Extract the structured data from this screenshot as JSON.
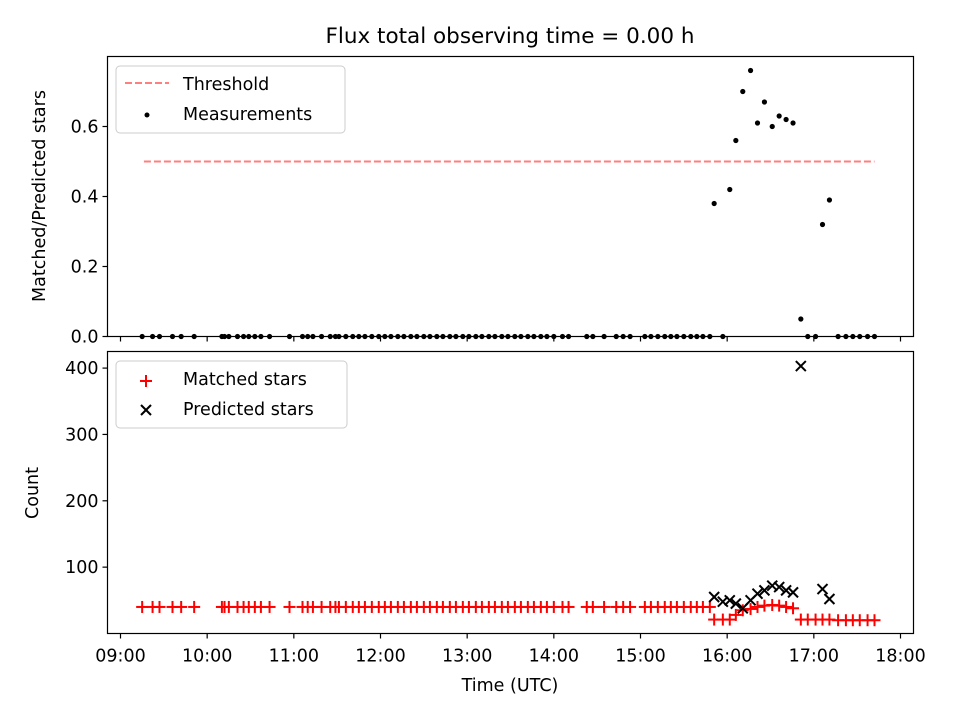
{
  "title": "Flux total observing time = 0.00 h",
  "chart_data": [
    {
      "type": "scatter",
      "ylabel": "Matched/Predicted stars",
      "xlim": [
        8.85,
        18.15
      ],
      "ylim": [
        0.0,
        0.8
      ],
      "yticks": [
        0.0,
        0.2,
        0.4,
        0.6
      ],
      "legend_position": "upper-left",
      "threshold": {
        "name": "Threshold",
        "value": 0.5,
        "x": [
          9.27,
          17.7
        ],
        "color": "#ff7f7f",
        "style": "dashed"
      },
      "measurements": {
        "name": "Measurements",
        "color": "#000000",
        "x": [
          9.25,
          9.37,
          9.45,
          9.6,
          9.7,
          9.85,
          10.17,
          10.2,
          10.25,
          10.35,
          10.42,
          10.48,
          10.55,
          10.62,
          10.72,
          10.95,
          11.1,
          11.16,
          11.22,
          11.32,
          11.42,
          11.48,
          11.52,
          11.6,
          11.68,
          11.75,
          11.82,
          11.9,
          11.98,
          12.05,
          12.12,
          12.2,
          12.27,
          12.35,
          12.42,
          12.5,
          12.57,
          12.65,
          12.72,
          12.8,
          12.87,
          12.95,
          13.02,
          13.1,
          13.17,
          13.25,
          13.32,
          13.4,
          13.47,
          13.55,
          13.62,
          13.7,
          13.77,
          13.85,
          13.92,
          14.0,
          14.1,
          14.17,
          14.38,
          14.45,
          14.58,
          14.72,
          14.8,
          14.88,
          15.05,
          15.12,
          15.2,
          15.28,
          15.35,
          15.42,
          15.5,
          15.58,
          15.65,
          15.72,
          15.8,
          15.85,
          15.95,
          16.03,
          16.1,
          16.18,
          16.27,
          16.35,
          16.43,
          16.52,
          16.6,
          16.68,
          16.76,
          16.85,
          16.93,
          17.02,
          17.1,
          17.18,
          17.28,
          17.37,
          17.45,
          17.53,
          17.62,
          17.7
        ],
        "y": [
          0,
          0,
          0,
          0,
          0,
          0,
          0,
          0,
          0,
          0,
          0,
          0,
          0,
          0,
          0,
          0,
          0,
          0,
          0,
          0,
          0,
          0,
          0,
          0,
          0,
          0,
          0,
          0,
          0,
          0,
          0,
          0,
          0,
          0,
          0,
          0,
          0,
          0,
          0,
          0,
          0,
          0,
          0,
          0,
          0,
          0,
          0,
          0,
          0,
          0,
          0,
          0,
          0,
          0,
          0,
          0,
          0,
          0,
          0,
          0,
          0,
          0,
          0,
          0,
          0,
          0,
          0,
          0,
          0,
          0,
          0,
          0,
          0,
          0,
          0,
          0.38,
          0,
          0.42,
          0.56,
          0.7,
          0.76,
          0.61,
          0.67,
          0.6,
          0.63,
          0.62,
          0.61,
          0.05,
          0,
          0,
          0.32,
          0.39,
          0,
          0,
          0,
          0,
          0,
          0
        ]
      }
    },
    {
      "type": "scatter",
      "xlabel": "Time (UTC)",
      "ylabel": "Count",
      "xlim": [
        8.85,
        18.15
      ],
      "ylim": [
        0,
        425
      ],
      "xticks": [
        9,
        10,
        11,
        12,
        13,
        14,
        15,
        16,
        17,
        18
      ],
      "xticklabels": [
        "09:00",
        "10:00",
        "11:00",
        "12:00",
        "13:00",
        "14:00",
        "15:00",
        "16:00",
        "17:00",
        "18:00"
      ],
      "yticks": [
        100,
        200,
        300,
        400
      ],
      "legend_position": "upper-left",
      "series": [
        {
          "name": "Matched stars",
          "marker": "plus",
          "color": "#ff0000",
          "x": [
            9.25,
            9.37,
            9.45,
            9.6,
            9.7,
            9.85,
            10.17,
            10.2,
            10.25,
            10.35,
            10.42,
            10.48,
            10.55,
            10.62,
            10.72,
            10.95,
            11.1,
            11.16,
            11.22,
            11.32,
            11.42,
            11.48,
            11.52,
            11.6,
            11.68,
            11.75,
            11.82,
            11.9,
            11.98,
            12.05,
            12.12,
            12.2,
            12.27,
            12.35,
            12.42,
            12.5,
            12.57,
            12.65,
            12.72,
            12.8,
            12.87,
            12.95,
            13.02,
            13.1,
            13.17,
            13.25,
            13.32,
            13.4,
            13.47,
            13.55,
            13.62,
            13.7,
            13.77,
            13.85,
            13.92,
            14.0,
            14.1,
            14.17,
            14.38,
            14.45,
            14.58,
            14.72,
            14.8,
            14.88,
            15.05,
            15.12,
            15.2,
            15.28,
            15.35,
            15.42,
            15.5,
            15.58,
            15.65,
            15.72,
            15.8,
            15.85,
            15.95,
            16.03,
            16.1,
            16.18,
            16.27,
            16.35,
            16.43,
            16.52,
            16.6,
            16.68,
            16.76,
            16.85,
            16.93,
            17.02,
            17.1,
            17.18,
            17.28,
            17.37,
            17.45,
            17.53,
            17.62,
            17.7
          ],
          "y": [
            40,
            40,
            40,
            40,
            40,
            40,
            40,
            40,
            40,
            40,
            40,
            40,
            40,
            40,
            40,
            40,
            40,
            40,
            40,
            40,
            40,
            40,
            40,
            40,
            40,
            40,
            40,
            40,
            40,
            40,
            40,
            40,
            40,
            40,
            40,
            40,
            40,
            40,
            40,
            40,
            40,
            40,
            40,
            40,
            40,
            40,
            40,
            40,
            40,
            40,
            40,
            40,
            40,
            40,
            40,
            40,
            40,
            40,
            40,
            40,
            40,
            40,
            40,
            40,
            40,
            40,
            40,
            40,
            40,
            40,
            40,
            40,
            40,
            40,
            40,
            21,
            21,
            21,
            28,
            35,
            37,
            40,
            42,
            43,
            42,
            40,
            38,
            21,
            21,
            21,
            21,
            21,
            20,
            20,
            20,
            20,
            20,
            20
          ]
        },
        {
          "name": "Predicted stars",
          "marker": "x",
          "color": "#000000",
          "x": [
            15.85,
            15.95,
            16.03,
            16.1,
            16.18,
            16.27,
            16.35,
            16.43,
            16.52,
            16.6,
            16.68,
            16.76,
            16.85,
            17.1,
            17.18
          ],
          "y": [
            55,
            48,
            50,
            45,
            38,
            50,
            60,
            65,
            72,
            70,
            65,
            62,
            403,
            67,
            52
          ]
        }
      ]
    }
  ]
}
